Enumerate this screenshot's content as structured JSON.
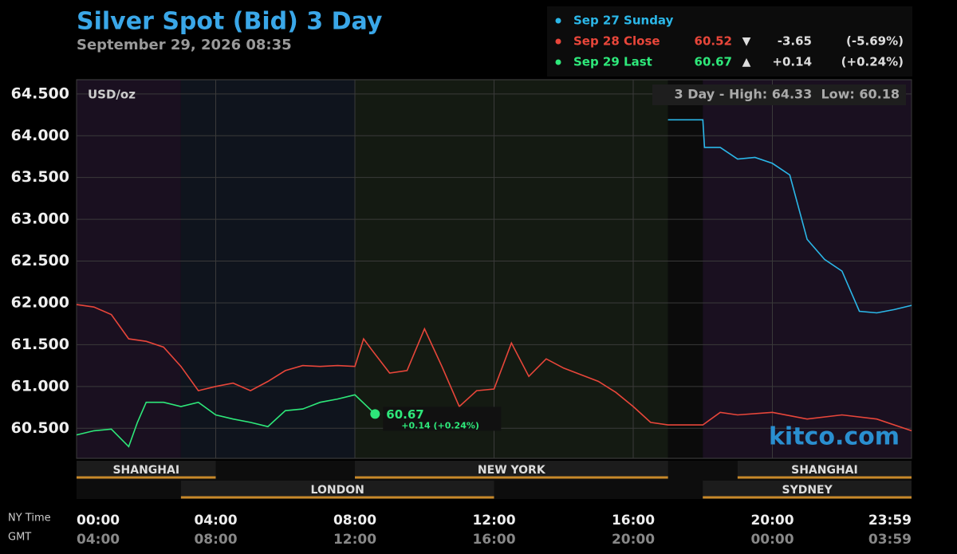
{
  "chart_data": {
    "type": "line",
    "title": "Silver Spot (Bid) 3 Day",
    "subtitle": "September 29, 2026 08:35",
    "unit": "USD/oz",
    "range_note": "3 Day - High: 64.33  Low: 60.18",
    "watermark": "kitco.com",
    "x_axis_label": "NY Time",
    "x2_axis_label": "GMT",
    "xlim": [
      0,
      24
    ],
    "xticks": [
      {
        "value": 0,
        "label": "00:00"
      },
      {
        "value": 4,
        "label": "04:00"
      },
      {
        "value": 8,
        "label": "08:00"
      },
      {
        "value": 12,
        "label": "12:00"
      },
      {
        "value": 16,
        "label": "16:00"
      },
      {
        "value": 20,
        "label": "20:00"
      },
      {
        "value": 24,
        "label": "23:59"
      }
    ],
    "x2ticks": [
      {
        "value": 0,
        "label": "04:00"
      },
      {
        "value": 4,
        "label": "08:00"
      },
      {
        "value": 8,
        "label": "12:00"
      },
      {
        "value": 12,
        "label": "16:00"
      },
      {
        "value": 16,
        "label": "20:00"
      },
      {
        "value": 20,
        "label": "00:00"
      },
      {
        "value": 24,
        "label": "03:59"
      }
    ],
    "ylim": [
      60.14,
      64.67
    ],
    "yticks": [
      {
        "value": 60.5,
        "label": "60.500"
      },
      {
        "value": 61,
        "label": "61.000"
      },
      {
        "value": 61.5,
        "label": "61.500"
      },
      {
        "value": 62,
        "label": "62.000"
      },
      {
        "value": 62.5,
        "label": "62.500"
      },
      {
        "value": 63,
        "label": "63.000"
      },
      {
        "value": 63.5,
        "label": "63.500"
      },
      {
        "value": 64,
        "label": "64.000"
      },
      {
        "value": 64.5,
        "label": "64.500"
      }
    ],
    "grid": true,
    "sessions_top": [
      {
        "label": "SHANGHAI",
        "start": 0,
        "end": 4
      },
      {
        "label": "NEW YORK",
        "start": 8,
        "end": 17
      },
      {
        "label": "SHANGHAI",
        "start": 19,
        "end": 24
      }
    ],
    "sessions_bottom": [
      {
        "label": "LONDON",
        "start": 3,
        "end": 12
      },
      {
        "label": "SYDNEY",
        "start": 18,
        "end": 24
      }
    ],
    "series": [
      {
        "name": "Sep 27 Sunday",
        "color": "#2bb7e8",
        "x": [
          17,
          18,
          18.05,
          18.5,
          19,
          19.5,
          20,
          20.5,
          21,
          21.5,
          22,
          22.5,
          23,
          23.5,
          24
        ],
        "values": [
          64.19,
          64.19,
          63.86,
          63.86,
          63.72,
          63.74,
          63.67,
          63.53,
          62.76,
          62.52,
          62.38,
          61.9,
          61.88,
          61.92,
          61.97
        ]
      },
      {
        "name": "Sep 28 Close",
        "color": "#e8463a",
        "quote": "60.52",
        "arrow": "▼",
        "change": "-3.65",
        "change_pct": "(-5.69%)",
        "x": [
          0,
          0.5,
          1,
          1.5,
          2,
          2.5,
          3,
          3.5,
          4,
          4.5,
          5,
          5.5,
          6,
          6.5,
          7,
          7.5,
          8,
          8.25,
          8.5,
          9,
          9.5,
          10,
          10.5,
          11,
          11.5,
          12,
          12.5,
          13,
          13.5,
          14,
          14.5,
          15,
          15.5,
          16,
          16.5,
          17,
          18,
          18.5,
          19,
          20,
          21,
          22,
          23,
          24
        ],
        "values": [
          61.98,
          61.95,
          61.86,
          61.57,
          61.54,
          61.47,
          61.24,
          60.95,
          61.0,
          61.04,
          60.95,
          61.06,
          61.19,
          61.25,
          61.24,
          61.25,
          61.24,
          61.57,
          61.43,
          61.16,
          61.19,
          61.69,
          61.24,
          60.76,
          60.95,
          60.97,
          61.52,
          61.12,
          61.33,
          61.22,
          61.14,
          61.06,
          60.93,
          60.76,
          60.57,
          60.54,
          60.54,
          60.69,
          60.66,
          60.69,
          60.61,
          60.66,
          60.61,
          60.47
        ]
      },
      {
        "name": "Sep 29 Last",
        "color": "#2ee87a",
        "quote": "60.67",
        "arrow": "▲",
        "change": "+0.14",
        "change_pct": "(+0.24%)",
        "last_label": "60.67",
        "last_change": "+0.14 (+0.24%)",
        "x": [
          0,
          0.5,
          1,
          1.5,
          1.75,
          2,
          2.5,
          3,
          3.5,
          4,
          4.5,
          5,
          5.5,
          6,
          6.5,
          7,
          7.5,
          8,
          8.58
        ],
        "values": [
          60.42,
          60.47,
          60.49,
          60.28,
          60.57,
          60.81,
          60.81,
          60.76,
          60.81,
          60.66,
          60.61,
          60.57,
          60.52,
          60.71,
          60.73,
          60.81,
          60.85,
          60.9,
          60.67
        ]
      }
    ]
  }
}
